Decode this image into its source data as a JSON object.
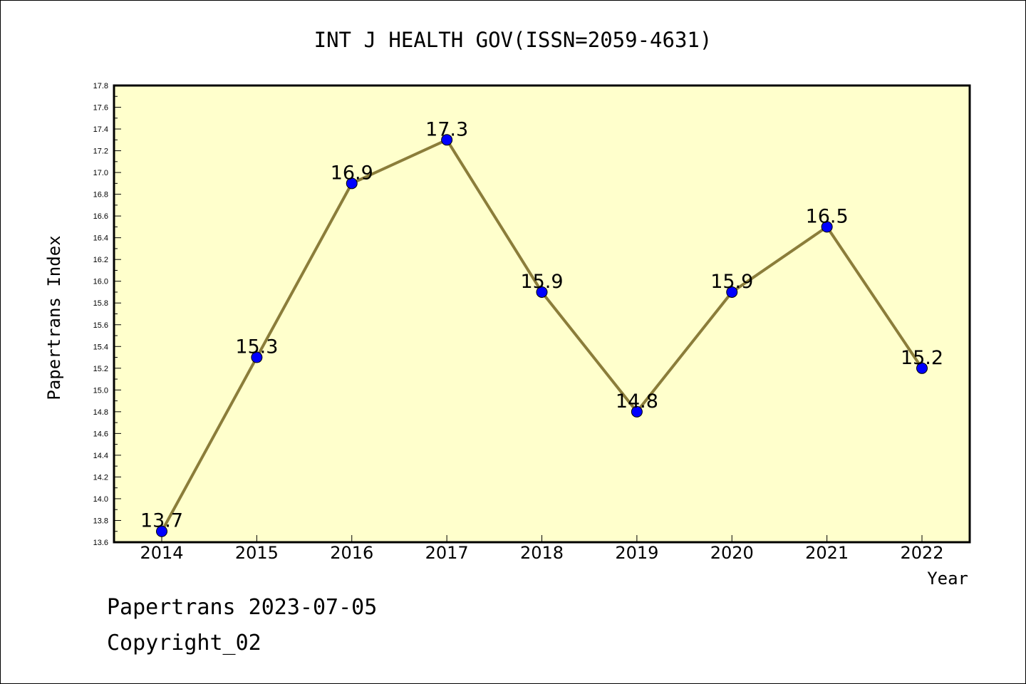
{
  "chart_data": {
    "type": "line",
    "title": "INT J HEALTH GOV(ISSN=2059-4631)",
    "xlabel": "Year",
    "ylabel": "Papertrans Index",
    "categories": [
      "2014",
      "2015",
      "2016",
      "2017",
      "2018",
      "2019",
      "2020",
      "2021",
      "2022"
    ],
    "values": [
      13.7,
      15.3,
      16.9,
      17.3,
      15.9,
      14.8,
      15.9,
      16.5,
      15.2
    ],
    "data_labels": [
      "13.7",
      "15.3",
      "16.9",
      "17.3",
      "15.9",
      "14.8",
      "15.9",
      "16.5",
      "15.2"
    ],
    "ylim": [
      13.6,
      17.8
    ],
    "yticks": [
      "13.6",
      "13.8",
      "14.0",
      "14.2",
      "14.4",
      "14.6",
      "14.8",
      "15.0",
      "15.2",
      "15.4",
      "15.6",
      "15.8",
      "16.0",
      "16.2",
      "16.4",
      "16.6",
      "16.8",
      "17.0",
      "17.2",
      "17.4",
      "17.6",
      "17.8"
    ],
    "grid": false,
    "colors": {
      "plot_background": "#ffffcc",
      "line": "#8b7d3a",
      "marker": "#0000ff"
    }
  },
  "footer": {
    "date_line": "Papertrans 2023-07-05",
    "copyright_line": "Copyright_02"
  }
}
